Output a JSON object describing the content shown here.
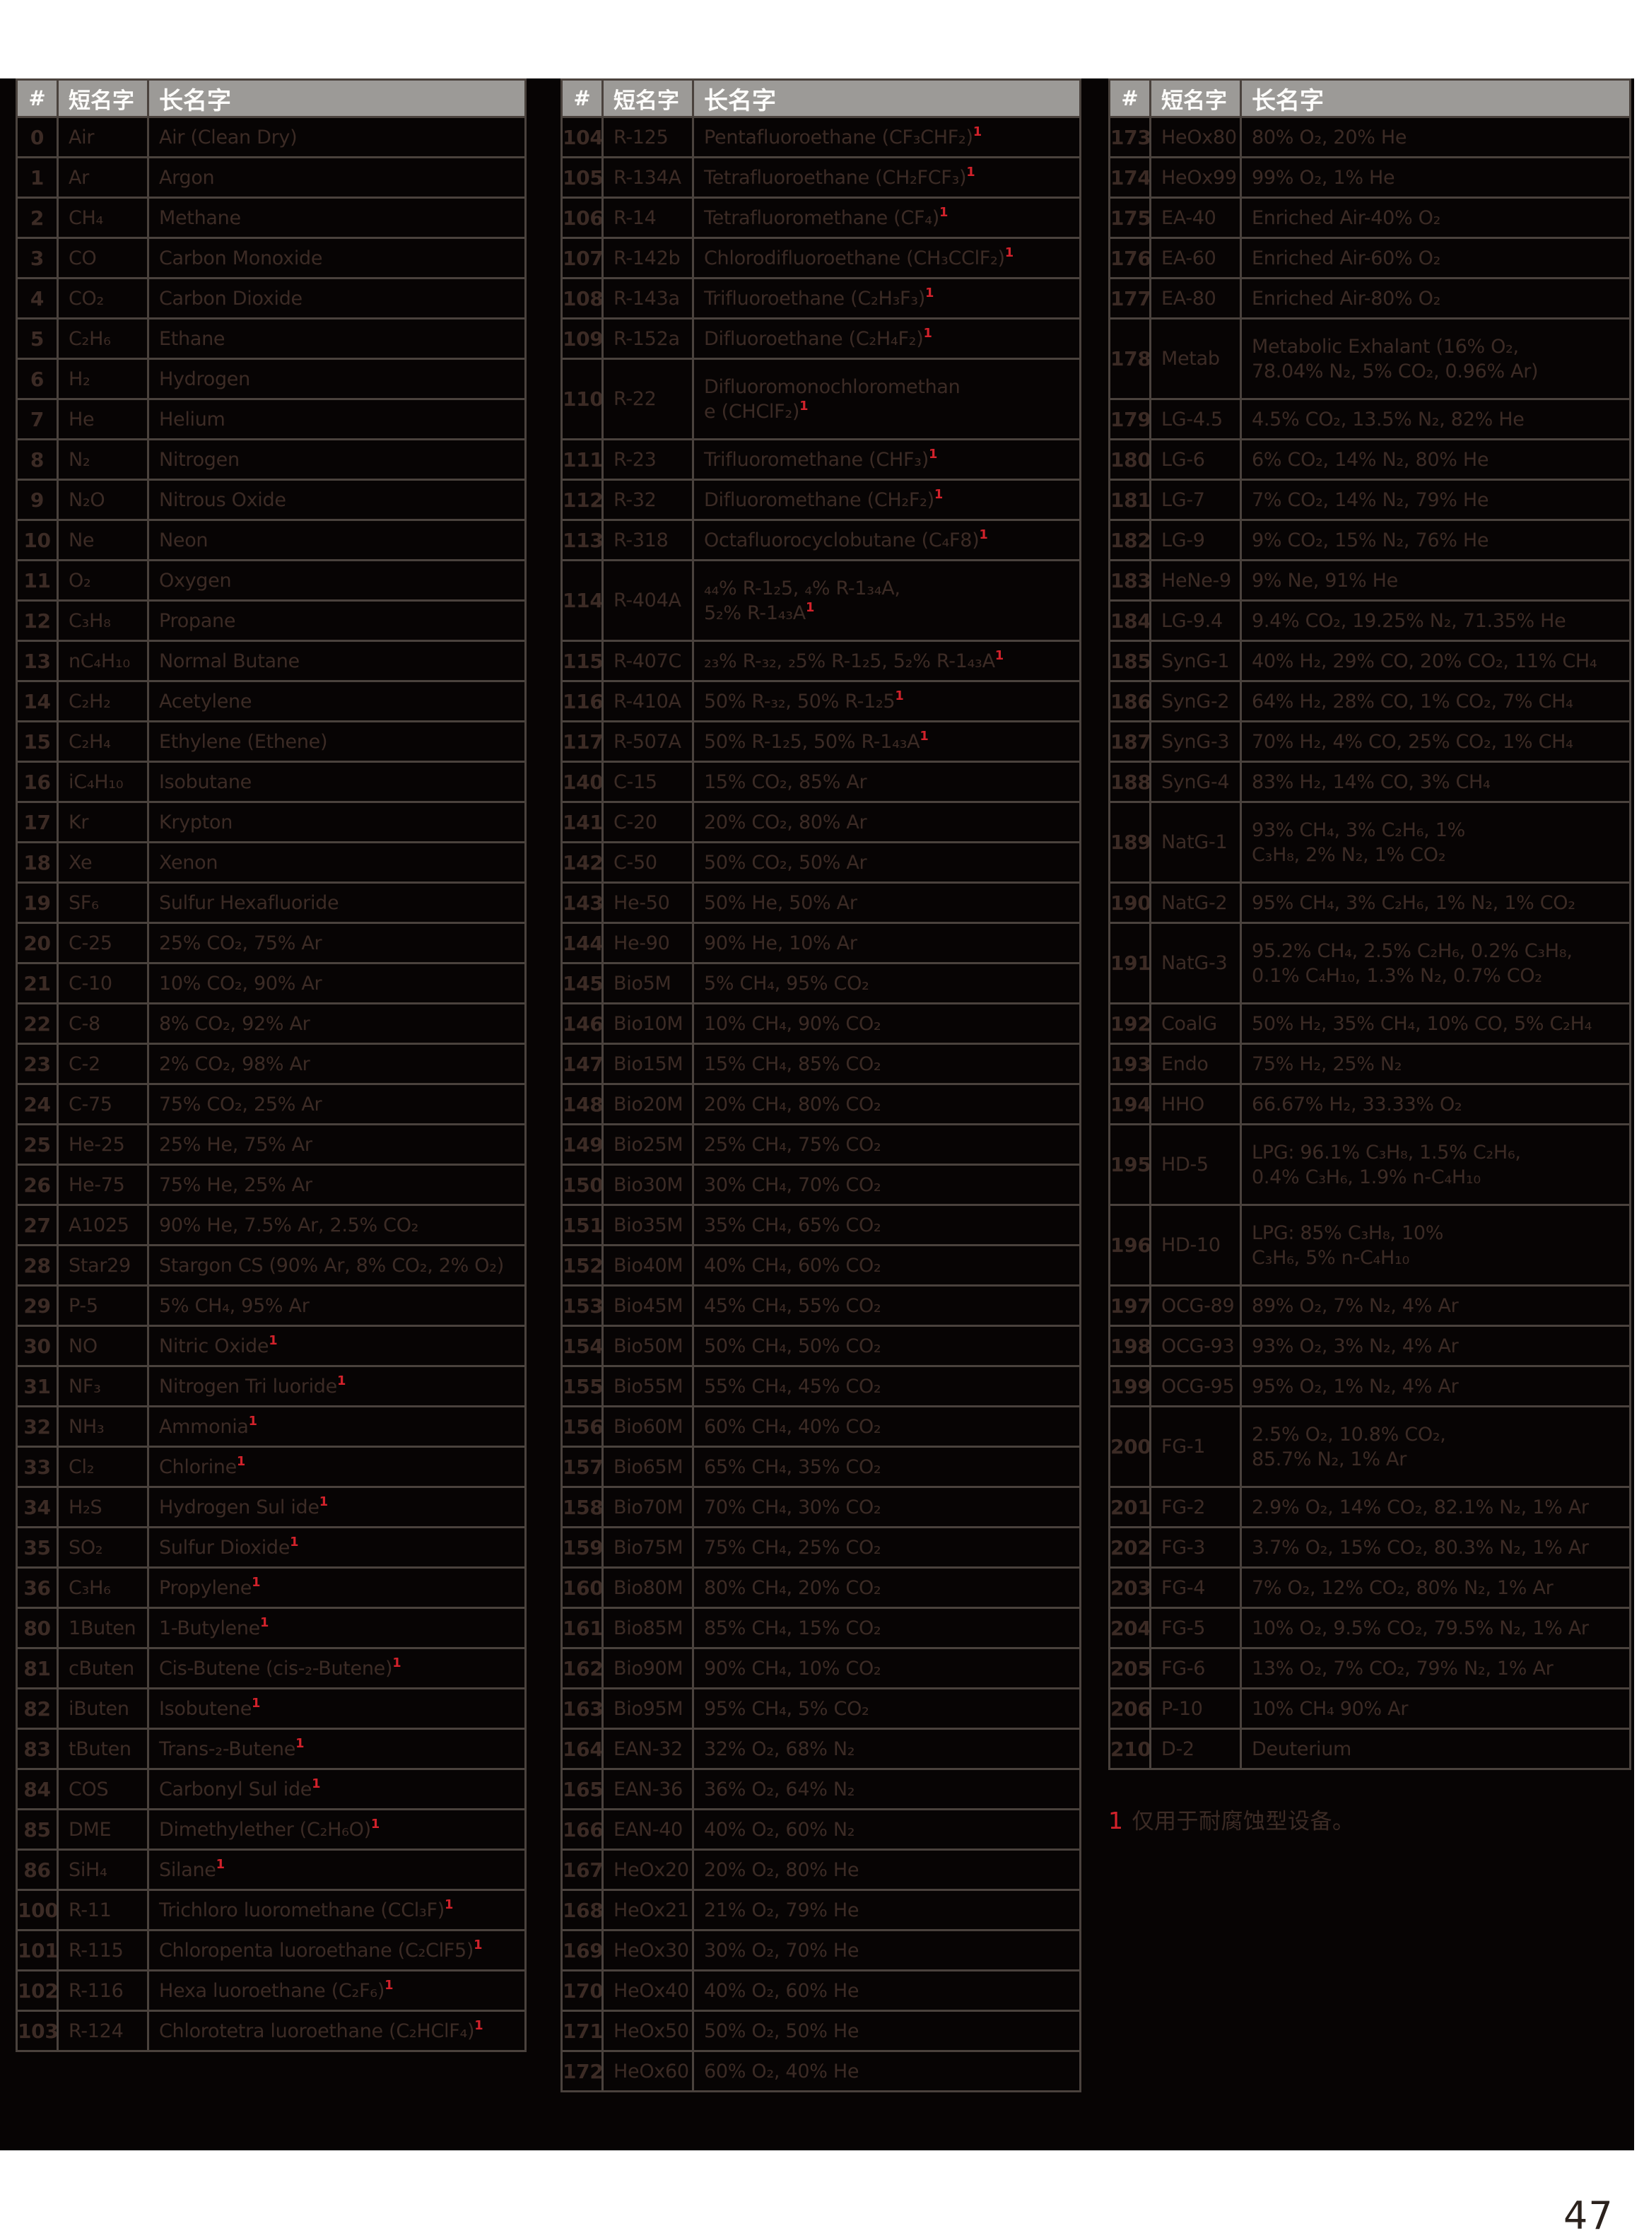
{
  "page_number": "47",
  "footnote": {
    "marker": "1",
    "text": "仅用于耐腐蚀型设备。"
  },
  "columns": {
    "num": "#",
    "short": "短名字",
    "long": "长名字"
  },
  "colors": {
    "page_background": "#ffffff",
    "content_background": "#070404",
    "header_background": "#9c9a97",
    "header_text": "#fdfcfa",
    "body_text": "#3c2b25",
    "grid_line": "#4a423d",
    "footnote_red": "#d2222b",
    "page_number_text": "#2b221d"
  },
  "tables": [
    {
      "rows": [
        [
          "0",
          "Air",
          "Air (Clean Dry)"
        ],
        [
          "1",
          "Ar",
          "Argon"
        ],
        [
          "2",
          "CH₄",
          "Methane"
        ],
        [
          "3",
          "CO",
          "Carbon Monoxide"
        ],
        [
          "4",
          "CO₂",
          "Carbon Dioxide"
        ],
        [
          "5",
          "C₂H₆",
          "Ethane"
        ],
        [
          "6",
          "H₂",
          "Hydrogen"
        ],
        [
          "7",
          "He",
          "Helium"
        ],
        [
          "8",
          "N₂",
          "Nitrogen"
        ],
        [
          "9",
          "N₂O",
          "Nitrous Oxide"
        ],
        [
          "10",
          "Ne",
          "Neon"
        ],
        [
          "11",
          "O₂",
          "Oxygen"
        ],
        [
          "12",
          "C₃H₈",
          "Propane"
        ],
        [
          "13",
          "nC₄H₁₀",
          "Normal Butane"
        ],
        [
          "14",
          "C₂H₂",
          "Acetylene"
        ],
        [
          "15",
          "C₂H₄",
          "Ethylene (Ethene)"
        ],
        [
          "16",
          "iC₄H₁₀",
          "Isobutane"
        ],
        [
          "17",
          "Kr",
          "Krypton"
        ],
        [
          "18",
          "Xe",
          "Xenon"
        ],
        [
          "19",
          "SF₆",
          "Sulfur Hexafluoride"
        ],
        [
          "20",
          "C-25",
          "25% CO₂, 75% Ar"
        ],
        [
          "21",
          "C-10",
          "10% CO₂, 90% Ar"
        ],
        [
          "22",
          "C-8",
          "8% CO₂, 92% Ar"
        ],
        [
          "23",
          "C-2",
          "2% CO₂, 98% Ar"
        ],
        [
          "24",
          "C-75",
          "75% CO₂, 25% Ar"
        ],
        [
          "25",
          "He-25",
          "25% He, 75% Ar"
        ],
        [
          "26",
          "He-75",
          "75% He, 25% Ar"
        ],
        [
          "27",
          "A1025",
          "90% He, 7.5% Ar, 2.5% CO₂"
        ],
        [
          "28",
          "Star29",
          "Stargon CS (90% Ar, 8% CO₂, 2% O₂)"
        ],
        [
          "29",
          "P-5",
          "5% CH₄, 95% Ar"
        ],
        [
          "30",
          "NO",
          "Nitric Oxide¹"
        ],
        [
          "31",
          "NF₃",
          "Nitrogen Tri luoride¹"
        ],
        [
          "32",
          "NH₃",
          "Ammonia¹"
        ],
        [
          "33",
          "Cl₂",
          "Chlorine¹"
        ],
        [
          "34",
          "H₂S",
          "Hydrogen Sul ide¹"
        ],
        [
          "35",
          "SO₂",
          "Sulfur Dioxide¹"
        ],
        [
          "36",
          "C₃H₆",
          "Propylene¹"
        ],
        [
          "80",
          "1Buten",
          "1-Butylene¹"
        ],
        [
          "81",
          "cButen",
          "Cis-Butene (cis-₂-Butene)¹"
        ],
        [
          "82",
          "iButen",
          "Isobutene¹"
        ],
        [
          "83",
          "tButen",
          "Trans-₂-Butene¹"
        ],
        [
          "84",
          "COS",
          "Carbonyl Sul ide¹"
        ],
        [
          "85",
          "DME",
          "Dimethylether (C₂H₆O)¹"
        ],
        [
          "86",
          "SiH₄",
          "Silane¹"
        ],
        [
          "100",
          "R-11",
          "Trichloro luoromethane (CCl₃F)¹"
        ],
        [
          "101",
          "R-115",
          "Chloropenta luoroethane (C₂ClF5)¹"
        ],
        [
          "102",
          "R-116",
          "Hexa luoroethane (C₂F₆)¹"
        ],
        [
          "103",
          "R-124",
          "Chlorotetra luoroethane (C₂HClF₄)¹"
        ]
      ]
    },
    {
      "rows": [
        [
          "104",
          "R-125",
          "Pentafluoroethane (CF₃CHF₂)¹"
        ],
        [
          "105",
          "R-134A",
          "Tetrafluoroethane (CH₂FCF₃)¹"
        ],
        [
          "106",
          "R-14",
          "Tetrafluoromethane (CF₄)¹"
        ],
        [
          "107",
          "R-142b",
          "Chlorodifluoroethane (CH₃CClF₂)¹"
        ],
        [
          "108",
          "R-143a",
          "Trifluoroethane (C₂H₃F₃)¹"
        ],
        [
          "109",
          "R-152a",
          "Difluoroethane (C₂H₄F₂)¹"
        ],
        [
          "110",
          "R-22",
          "Difluoromonochloromethan\ne (CHClF₂)¹"
        ],
        [
          "111",
          "R-23",
          "Trifluoromethane (CHF₃)¹"
        ],
        [
          "112",
          "R-32",
          "Difluoromethane (CH₂F₂)¹"
        ],
        [
          "113",
          "R-318",
          "Octafluorocyclobutane (C₄F8)¹"
        ],
        [
          "114",
          "R-404A",
          "₄₄% R-1₂5, ₄% R-1₃₄A,\n5₂% R-1₄₃A¹"
        ],
        [
          "115",
          "R-407C",
          "₂₃% R-₃₂, ₂5% R-1₂5, 5₂% R-1₄₃A¹"
        ],
        [
          "116",
          "R-410A",
          "50% R-₃₂, 50% R-1₂5¹"
        ],
        [
          "117",
          "R-507A",
          "50% R-1₂5, 50% R-1₄₃A¹"
        ],
        [
          "140",
          "C-15",
          "15% CO₂, 85% Ar"
        ],
        [
          "141",
          "C-20",
          "20% CO₂, 80% Ar"
        ],
        [
          "142",
          "C-50",
          "50% CO₂, 50% Ar"
        ],
        [
          "143",
          "He-50",
          "50% He, 50% Ar"
        ],
        [
          "144",
          "He-90",
          "90% He, 10% Ar"
        ],
        [
          "145",
          "Bio5M",
          "5% CH₄, 95% CO₂"
        ],
        [
          "146",
          "Bio10M",
          "10% CH₄, 90% CO₂"
        ],
        [
          "147",
          "Bio15M",
          "15% CH₄, 85% CO₂"
        ],
        [
          "148",
          "Bio20M",
          "20% CH₄, 80% CO₂"
        ],
        [
          "149",
          "Bio25M",
          "25% CH₄, 75% CO₂"
        ],
        [
          "150",
          "Bio30M",
          "30% CH₄, 70% CO₂"
        ],
        [
          "151",
          "Bio35M",
          "35% CH₄, 65% CO₂"
        ],
        [
          "152",
          "Bio40M",
          "40% CH₄, 60% CO₂"
        ],
        [
          "153",
          "Bio45M",
          "45% CH₄, 55% CO₂"
        ],
        [
          "154",
          "Bio50M",
          "50% CH₄, 50% CO₂"
        ],
        [
          "155",
          "Bio55M",
          "55% CH₄, 45% CO₂"
        ],
        [
          "156",
          "Bio60M",
          "60% CH₄, 40% CO₂"
        ],
        [
          "157",
          "Bio65M",
          "65% CH₄, 35% CO₂"
        ],
        [
          "158",
          "Bio70M",
          "70% CH₄, 30% CO₂"
        ],
        [
          "159",
          "Bio75M",
          "75% CH₄, 25% CO₂"
        ],
        [
          "160",
          "Bio80M",
          "80% CH₄, 20% CO₂"
        ],
        [
          "161",
          "Bio85M",
          "85% CH₄, 15% CO₂"
        ],
        [
          "162",
          "Bio90M",
          "90% CH₄, 10% CO₂"
        ],
        [
          "163",
          "Bio95M",
          "95% CH₄, 5% CO₂"
        ],
        [
          "164",
          "EAN-32",
          "32% O₂, 68% N₂"
        ],
        [
          "165",
          "EAN-36",
          "36% O₂, 64% N₂"
        ],
        [
          "166",
          "EAN-40",
          "40% O₂, 60% N₂"
        ],
        [
          "167",
          "HeOx20",
          "20% O₂, 80% He"
        ],
        [
          "168",
          "HeOx21",
          "21% O₂, 79% He"
        ],
        [
          "169",
          "HeOx30",
          "30% O₂, 70% He"
        ],
        [
          "170",
          "HeOx40",
          "40% O₂, 60% He"
        ],
        [
          "171",
          "HeOx50",
          "50% O₂, 50% He"
        ],
        [
          "172",
          "HeOx60",
          "60% O₂, 40% He"
        ]
      ]
    },
    {
      "rows": [
        [
          "173",
          "HeOx80",
          "80% O₂, 20% He"
        ],
        [
          "174",
          "HeOx99",
          "99% O₂, 1% He"
        ],
        [
          "175",
          "EA-40",
          "Enriched Air-40% O₂"
        ],
        [
          "176",
          "EA-60",
          "Enriched Air-60% O₂"
        ],
        [
          "177",
          "EA-80",
          "Enriched Air-80% O₂"
        ],
        [
          "178",
          "Metab",
          "Metabolic Exhalant (16% O₂,\n78.04% N₂, 5% CO₂, 0.96% Ar)"
        ],
        [
          "179",
          "LG-4.5",
          "4.5% CO₂, 13.5% N₂, 82% He"
        ],
        [
          "180",
          "LG-6",
          "6% CO₂, 14% N₂, 80% He"
        ],
        [
          "181",
          "LG-7",
          "7% CO₂, 14% N₂, 79% He"
        ],
        [
          "182",
          "LG-9",
          "9% CO₂, 15% N₂, 76% He"
        ],
        [
          "183",
          "HeNe-9",
          "9% Ne, 91% He"
        ],
        [
          "184",
          "LG-9.4",
          "9.4% CO₂, 19.25% N₂, 71.35% He"
        ],
        [
          "185",
          "SynG-1",
          "40% H₂, 29% CO, 20% CO₂, 11% CH₄"
        ],
        [
          "186",
          "SynG-2",
          "64% H₂, 28% CO, 1% CO₂, 7% CH₄"
        ],
        [
          "187",
          "SynG-3",
          "70% H₂, 4% CO, 25% CO₂, 1% CH₄"
        ],
        [
          "188",
          "SynG-4",
          "83% H₂, 14% CO, 3% CH₄"
        ],
        [
          "189",
          "NatG-1",
          "93% CH₄, 3% C₂H₆, 1%\nC₃H₈, 2% N₂, 1% CO₂"
        ],
        [
          "190",
          "NatG-2",
          "95% CH₄, 3% C₂H₆, 1% N₂, 1% CO₂"
        ],
        [
          "191",
          "NatG-3",
          "95.2% CH₄, 2.5% C₂H₆, 0.2% C₃H₈,\n0.1% C₄H₁₀, 1.3% N₂, 0.7% CO₂"
        ],
        [
          "192",
          "CoalG",
          "50% H₂, 35% CH₄, 10% CO, 5% C₂H₄"
        ],
        [
          "193",
          "Endo",
          "75% H₂, 25% N₂"
        ],
        [
          "194",
          "HHO",
          "66.67% H₂, 33.33% O₂"
        ],
        [
          "195",
          "HD-5",
          "LPG: 96.1% C₃H₈, 1.5% C₂H₆,\n0.4% C₃H₆, 1.9% n-C₄H₁₀"
        ],
        [
          "196",
          "HD-10",
          "LPG: 85% C₃H₈, 10%\nC₃H₆, 5% n-C₄H₁₀"
        ],
        [
          "197",
          "OCG-89",
          "89% O₂, 7% N₂, 4% Ar"
        ],
        [
          "198",
          "OCG-93",
          "93% O₂, 3% N₂, 4% Ar"
        ],
        [
          "199",
          "OCG-95",
          "95% O₂, 1% N₂, 4% Ar"
        ],
        [
          "200",
          "FG-1",
          "2.5% O₂, 10.8% CO₂,\n85.7% N₂, 1% Ar"
        ],
        [
          "201",
          "FG-2",
          "2.9% O₂, 14% CO₂, 82.1% N₂, 1% Ar"
        ],
        [
          "202",
          "FG-3",
          "3.7% O₂, 15% CO₂, 80.3% N₂, 1% Ar"
        ],
        [
          "203",
          "FG-4",
          "7% O₂, 12% CO₂, 80% N₂, 1% Ar"
        ],
        [
          "204",
          "FG-5",
          "10% O₂, 9.5% CO₂, 79.5% N₂, 1% Ar"
        ],
        [
          "205",
          "FG-6",
          "13% O₂, 7% CO₂, 79% N₂, 1% Ar"
        ],
        [
          "206",
          "P-10",
          "10% CH₄ 90% Ar"
        ],
        [
          "210",
          "D-2",
          "Deuterium"
        ]
      ]
    }
  ]
}
